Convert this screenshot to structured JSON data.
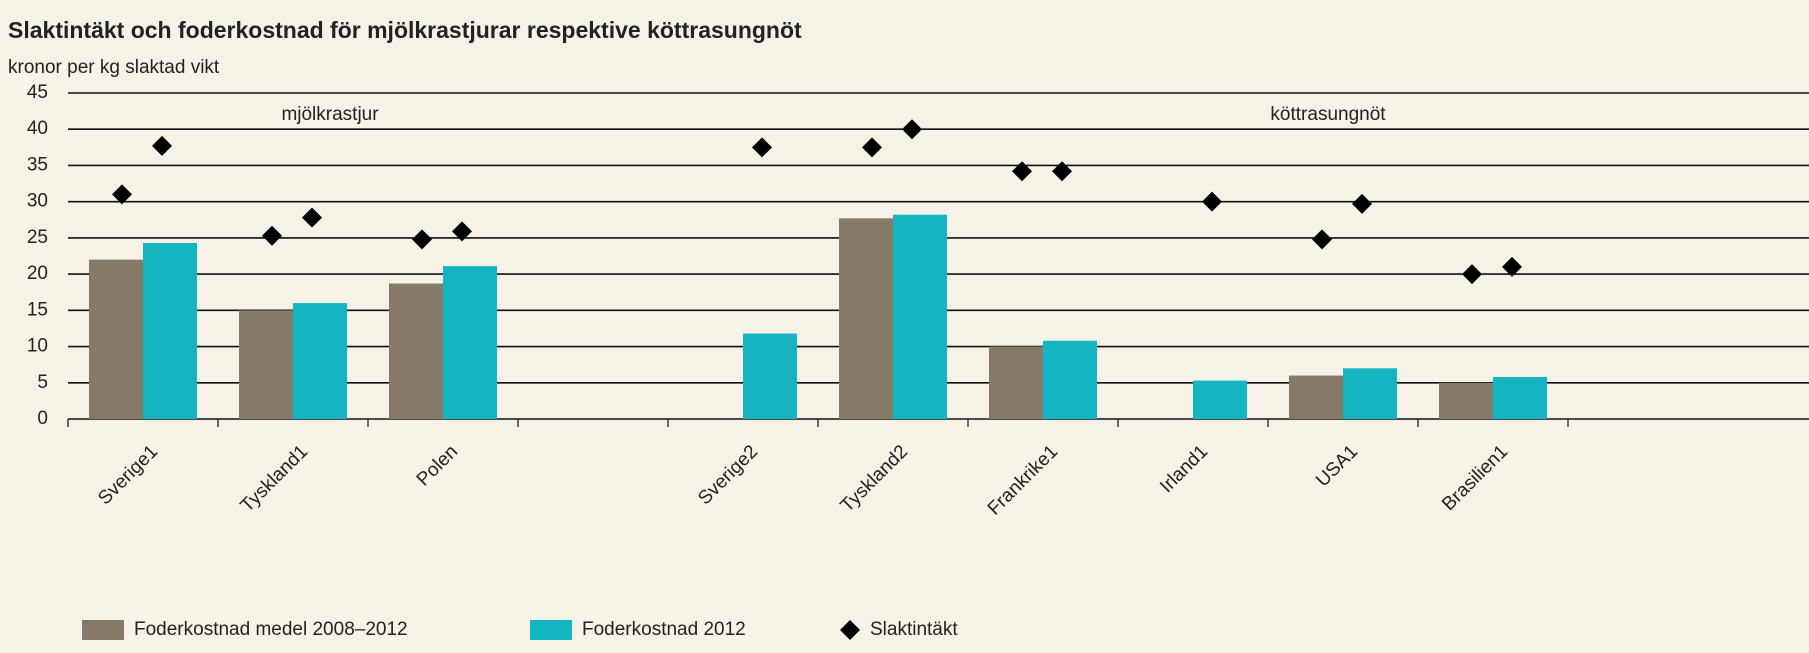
{
  "chart_data": {
    "type": "bar",
    "title": "Slaktintäkt och foderkostnad för mjölkrastjurar respektive köttrasungnöt",
    "subtitle": "kronor per kg slaktad vikt",
    "annotations": [
      "mjölkrastjur",
      "köttrasungnöt"
    ],
    "categories": [
      "Sverige1",
      "Tyskland1",
      "Polen",
      null,
      "Sverige2",
      "Tyskland2",
      "Frankrike1",
      "Irland1",
      "USA1",
      "Brasilien1"
    ],
    "series": [
      {
        "name": "Foderkostnad medel 2008–2012",
        "color": "#857a68",
        "values": [
          22,
          15,
          18.7,
          null,
          null,
          27.7,
          10,
          null,
          6,
          5
        ]
      },
      {
        "name": "Foderkostnad 2012",
        "color": "#14b4c0",
        "values": [
          24.3,
          16,
          21.1,
          null,
          11.8,
          28.2,
          10.8,
          5.3,
          7,
          5.8
        ]
      },
      {
        "name": "Slaktintäkt",
        "color": "#000000",
        "marker": "diamond",
        "values": [
          [
            31,
            37.7
          ],
          [
            25.3,
            27.8
          ],
          [
            24.8,
            25.9
          ],
          [
            null,
            null
          ],
          [
            null,
            37.5
          ],
          [
            37.5,
            40
          ],
          [
            34.2,
            34.2
          ],
          [
            null,
            30
          ],
          [
            24.8,
            29.7
          ],
          [
            20,
            21
          ]
        ]
      }
    ],
    "ylim": [
      0,
      45
    ],
    "yticks": [
      0,
      5,
      10,
      15,
      20,
      25,
      30,
      35,
      40,
      45
    ],
    "grid": true
  }
}
